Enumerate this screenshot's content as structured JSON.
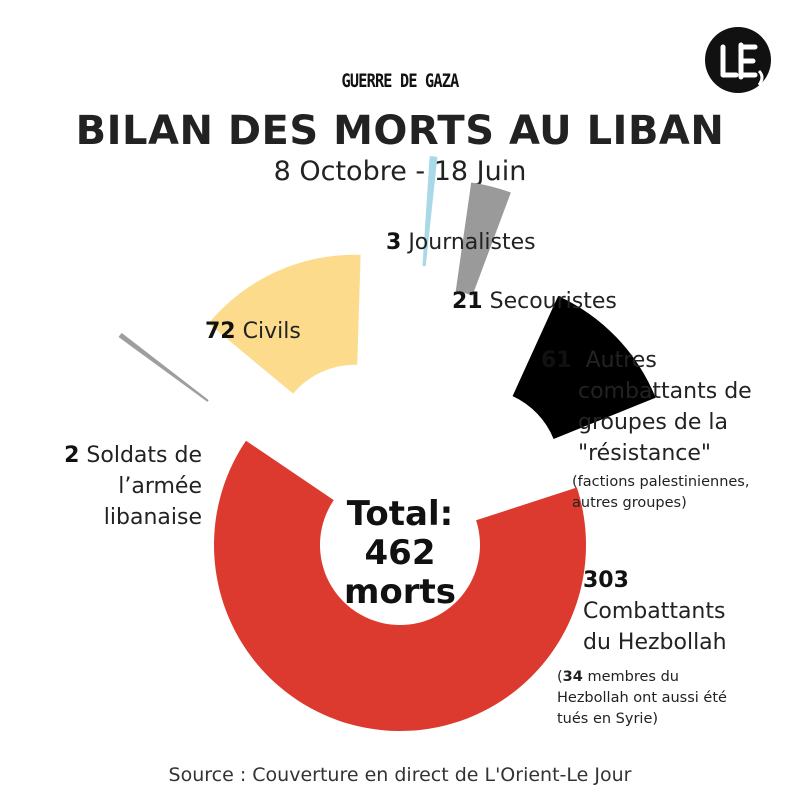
{
  "header": {
    "kicker": "GUERRE DE GAZA",
    "title": "BILAN DES MORTS AU LIBAN",
    "subtitle": "8 Octobre - 18 Juin"
  },
  "logo": {
    "icon": "lorient-le-jour-logo-icon"
  },
  "center": {
    "line1": "Total:",
    "line2": "462",
    "line3": "morts"
  },
  "labels": {
    "journalistes": {
      "value": "3",
      "text": "Journalistes"
    },
    "secouristes": {
      "value": "21",
      "text": "Secouristes"
    },
    "civils": {
      "value": "72",
      "text": "Civils"
    },
    "autres": {
      "value": "61",
      "line1": "Autres",
      "line2": "combattants de",
      "line3": "groupes de la",
      "line4": "\"résistance\"",
      "note1": "(factions palestiniennes,",
      "note2": "autres groupes)"
    },
    "soldats": {
      "value": "2",
      "line1": "Soldats de",
      "line2": "l’armée",
      "line3": "libanaise"
    },
    "hezbollah": {
      "value": "303",
      "line1": "Combattants",
      "line2": "du Hezbollah",
      "note_open": "(",
      "note_value": "34",
      "note1": " membres du",
      "note2": "Hezbollah ont aussi été",
      "note3": "tués en Syrie)"
    }
  },
  "source": "Source : Couverture en direct de L'Orient-Le Jour",
  "chart_data": {
    "type": "pie",
    "style": "exploded donut",
    "slices": [
      {
        "key": "hezbollah",
        "value": 303,
        "color": "#dd3a2f"
      },
      {
        "key": "soldats",
        "value": 2,
        "color": "#9e9e9e"
      },
      {
        "key": "civils",
        "value": 72,
        "color": "#fcdc8c"
      },
      {
        "key": "journalistes",
        "value": 3,
        "color": "#a9d8e8"
      },
      {
        "key": "secouristes",
        "value": 21,
        "color": "#9a9a9a"
      },
      {
        "key": "autres",
        "value": 61,
        "color": "#000000"
      }
    ],
    "total": 462
  }
}
